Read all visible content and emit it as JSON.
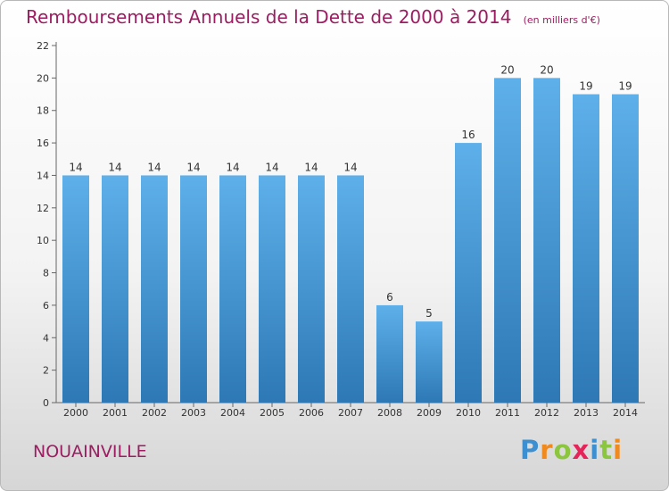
{
  "chart_data": {
    "type": "bar",
    "title": "Remboursements Annuels de la Dette de 2000 à 2014",
    "unit": "(en milliers d'€)",
    "categories": [
      "2000",
      "2001",
      "2002",
      "2003",
      "2004",
      "2005",
      "2006",
      "2007",
      "2008",
      "2009",
      "2010",
      "2011",
      "2012",
      "2013",
      "2014"
    ],
    "values": [
      14,
      14,
      14,
      14,
      14,
      14,
      14,
      14,
      6,
      5,
      16,
      20,
      20,
      19,
      19
    ],
    "ylim": [
      0,
      22
    ],
    "yticks": [
      0,
      2,
      4,
      6,
      8,
      10,
      12,
      14,
      16,
      18,
      20,
      22
    ],
    "grid": false,
    "bar_color_top": "#5eb0ea",
    "bar_color_bottom": "#2d78b5",
    "title_color": "#9c1d61"
  },
  "footer": {
    "commune": "NOUAINVILLE",
    "logo_letters": [
      {
        "ch": "P",
        "color": "#3c8fd0"
      },
      {
        "ch": "r",
        "color": "#f08a1c"
      },
      {
        "ch": "o",
        "color": "#8cc63e"
      },
      {
        "ch": "x",
        "color": "#e5245a"
      },
      {
        "ch": "i",
        "color": "#3c8fd0"
      },
      {
        "ch": "t",
        "color": "#8cc63e"
      },
      {
        "ch": "i",
        "color": "#f08a1c"
      }
    ]
  }
}
